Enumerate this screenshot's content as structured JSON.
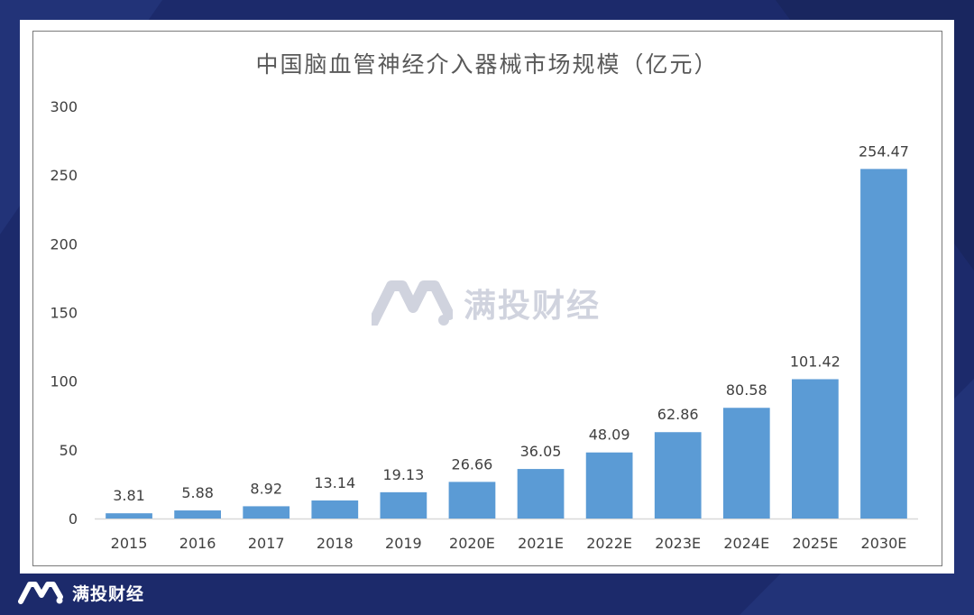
{
  "chart_data": {
    "type": "bar",
    "title": "中国脑血管神经介入器械市场规模（亿元）",
    "categories": [
      "2015",
      "2016",
      "2017",
      "2018",
      "2019",
      "2020E",
      "2021E",
      "2022E",
      "2023E",
      "2024E",
      "2025E",
      "2030E"
    ],
    "values": [
      3.81,
      5.88,
      8.92,
      13.14,
      19.13,
      26.66,
      36.05,
      48.09,
      62.86,
      80.58,
      101.42,
      254.47
    ],
    "value_labels": [
      "3.81",
      "5.88",
      "8.92",
      "13.14",
      "19.13",
      "26.66",
      "36.05",
      "48.09",
      "62.86",
      "80.58",
      "101.42",
      "254.47"
    ],
    "yticks": [
      "0",
      "50",
      "100",
      "150",
      "200",
      "250",
      "300"
    ],
    "ylim": [
      0,
      300
    ],
    "xlabel": "",
    "ylabel": "",
    "grid": false,
    "bar_color": "#5b9bd5"
  },
  "watermark": {
    "text": "满投财经"
  },
  "brand": {
    "name": "满投财经",
    "logo_icon": "m-logo-icon"
  },
  "colors": {
    "background": "#1c2a6b",
    "label": "#404040",
    "axis": "#d9d9d9"
  }
}
